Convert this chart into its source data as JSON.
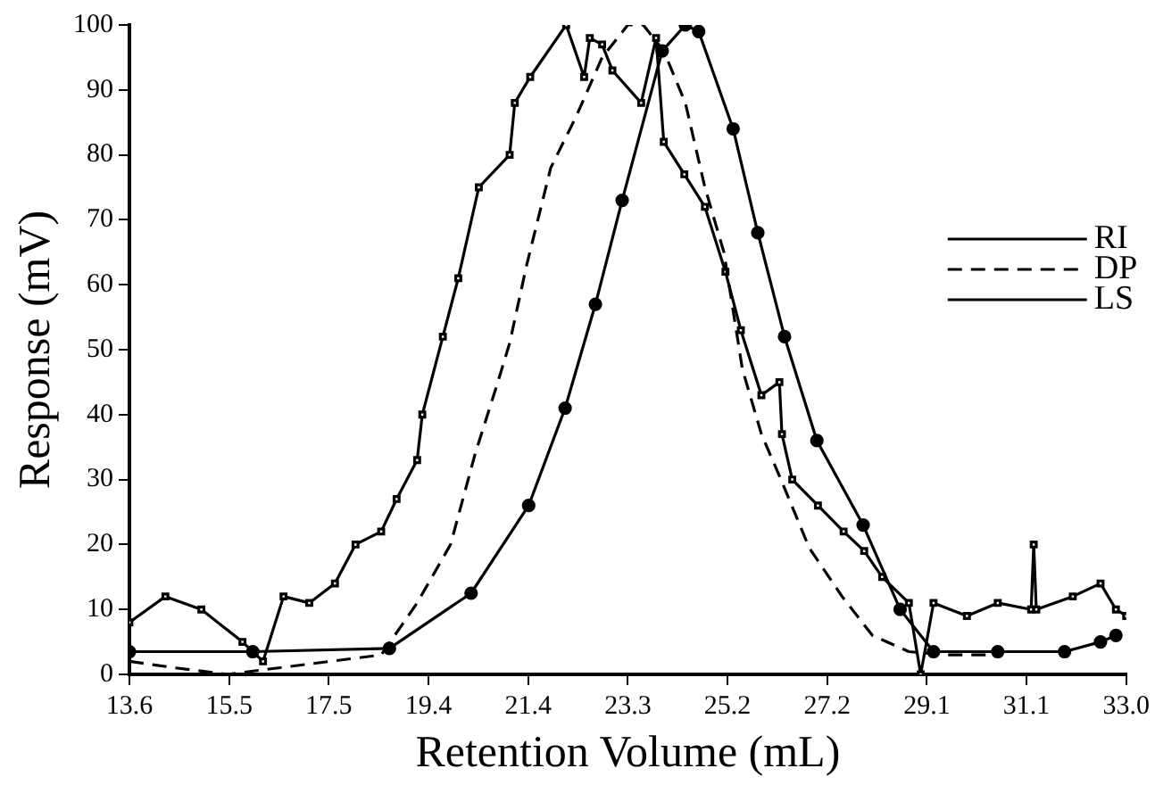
{
  "chart_data": {
    "type": "line",
    "xlabel": "Retention Volume (mL)",
    "ylabel": "Response (mV)",
    "xlim": [
      13.6,
      33.0
    ],
    "ylim": [
      0,
      100
    ],
    "xticks": [
      {
        "value": 13.6,
        "label": "13.6"
      },
      {
        "value": 15.54,
        "label": "15.5"
      },
      {
        "value": 17.48,
        "label": "17.5"
      },
      {
        "value": 19.42,
        "label": "19.4"
      },
      {
        "value": 21.36,
        "label": "21.4"
      },
      {
        "value": 23.3,
        "label": "23.3"
      },
      {
        "value": 25.24,
        "label": "25.2"
      },
      {
        "value": 27.18,
        "label": "27.2"
      },
      {
        "value": 29.12,
        "label": "29.1"
      },
      {
        "value": 31.06,
        "label": "31.1"
      },
      {
        "value": 33.0,
        "label": "33.0"
      }
    ],
    "yticks": [
      0,
      10,
      20,
      30,
      40,
      50,
      60,
      70,
      80,
      90,
      100
    ],
    "grid": false,
    "legend": "right",
    "series": [
      {
        "name": "RI",
        "color": "#000000",
        "marker": "circle",
        "line_style": "solid",
        "x": [
          13.6,
          16.0,
          18.66,
          20.25,
          21.37,
          22.08,
          22.67,
          23.19,
          23.97,
          24.42,
          24.68,
          25.35,
          25.83,
          26.35,
          26.98,
          27.88,
          28.6,
          29.25,
          30.5,
          31.8,
          32.5,
          32.8
        ],
        "values": [
          3.5,
          3.5,
          4,
          12.5,
          26,
          41,
          57,
          73,
          96,
          100,
          99,
          84,
          68,
          52,
          36,
          23,
          10,
          3.5,
          3.5,
          3.5,
          5,
          6
        ]
      },
      {
        "name": "DP",
        "color": "#000000",
        "marker": "none",
        "line_style": "dashed",
        "x": [
          13.6,
          14.5,
          15.5,
          16.5,
          17.5,
          18.5,
          19.2,
          19.85,
          20.33,
          20.77,
          21.0,
          21.33,
          21.8,
          22.3,
          22.8,
          23.3,
          23.6,
          24.0,
          24.42,
          24.8,
          25.17,
          25.35,
          25.53,
          25.9,
          26.28,
          26.83,
          27.47,
          28.06,
          28.77,
          29.5,
          30.5
        ],
        "values": [
          2,
          1,
          0,
          1,
          2,
          3,
          11,
          20,
          34,
          45,
          51,
          63,
          78,
          86,
          95,
          100,
          100,
          96,
          88,
          75,
          65,
          56,
          47,
          37,
          30,
          19.5,
          12,
          6,
          3.5,
          3,
          3
        ]
      },
      {
        "name": "LS",
        "color": "#000000",
        "marker": "square",
        "line_style": "solid",
        "x": [
          13.6,
          14.3,
          15.0,
          15.8,
          16.2,
          16.6,
          17.1,
          17.6,
          18.0,
          18.5,
          18.8,
          19.2,
          19.3,
          19.7,
          20.0,
          20.4,
          21.0,
          21.1,
          21.4,
          22.1,
          22.45,
          22.56,
          22.8,
          23.0,
          23.56,
          23.85,
          24.0,
          24.4,
          24.8,
          25.2,
          25.5,
          25.9,
          26.25,
          26.3,
          26.5,
          27.0,
          27.5,
          27.9,
          28.25,
          28.77,
          29.0,
          29.25,
          29.9,
          30.5,
          31.15,
          31.2,
          31.25,
          31.96,
          32.5,
          32.8,
          33.0
        ],
        "values": [
          8,
          12,
          10,
          5,
          2,
          12,
          11,
          14,
          20,
          22,
          27,
          33,
          40,
          52,
          61,
          75,
          80,
          88,
          92,
          100,
          92,
          98,
          97,
          93,
          88,
          98,
          82,
          77,
          72,
          62,
          53,
          43,
          45,
          37,
          30,
          26,
          22,
          19,
          15,
          11,
          0,
          11,
          9,
          11,
          10,
          20,
          10,
          12,
          14,
          10,
          9
        ]
      }
    ]
  }
}
